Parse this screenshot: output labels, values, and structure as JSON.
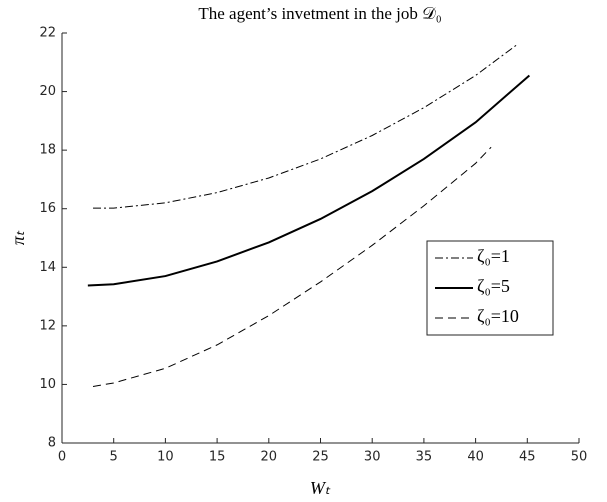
{
  "chart_data": {
    "type": "line",
    "title": "The agent’s invetment in the job 𝒟₀",
    "xlabel": "Wₜ",
    "ylabel": "πₜ",
    "xlim": [
      0,
      50
    ],
    "ylim": [
      8,
      22
    ],
    "xticks": [
      0,
      5,
      10,
      15,
      20,
      25,
      30,
      35,
      40,
      45,
      50
    ],
    "yticks": [
      8,
      10,
      12,
      14,
      16,
      18,
      20,
      22
    ],
    "grid": false,
    "legend_position": "east",
    "series": [
      {
        "name": "ζ₀=1",
        "color": "#000000",
        "dash": "dashdot",
        "linewidth": 1,
        "x": [
          3,
          5,
          10,
          15,
          20,
          25,
          30,
          35,
          40,
          44
        ],
        "values": [
          16.02,
          16.02,
          16.2,
          16.55,
          17.05,
          17.7,
          18.5,
          19.45,
          20.55,
          21.6
        ]
      },
      {
        "name": "ζ₀=5",
        "color": "#000000",
        "dash": "solid",
        "linewidth": 2,
        "x": [
          2.5,
          5,
          10,
          15,
          20,
          25,
          30,
          35,
          40,
          45.2
        ],
        "values": [
          13.38,
          13.42,
          13.7,
          14.2,
          14.85,
          15.65,
          16.6,
          17.7,
          18.95,
          20.55
        ]
      },
      {
        "name": "ζ₀=10",
        "color": "#000000",
        "dash": "dashed",
        "linewidth": 1,
        "x": [
          3,
          5,
          10,
          15,
          20,
          25,
          30,
          35,
          40,
          41.5
        ],
        "values": [
          9.93,
          10.05,
          10.55,
          11.35,
          12.35,
          13.5,
          14.75,
          16.1,
          17.55,
          18.1
        ]
      }
    ]
  }
}
